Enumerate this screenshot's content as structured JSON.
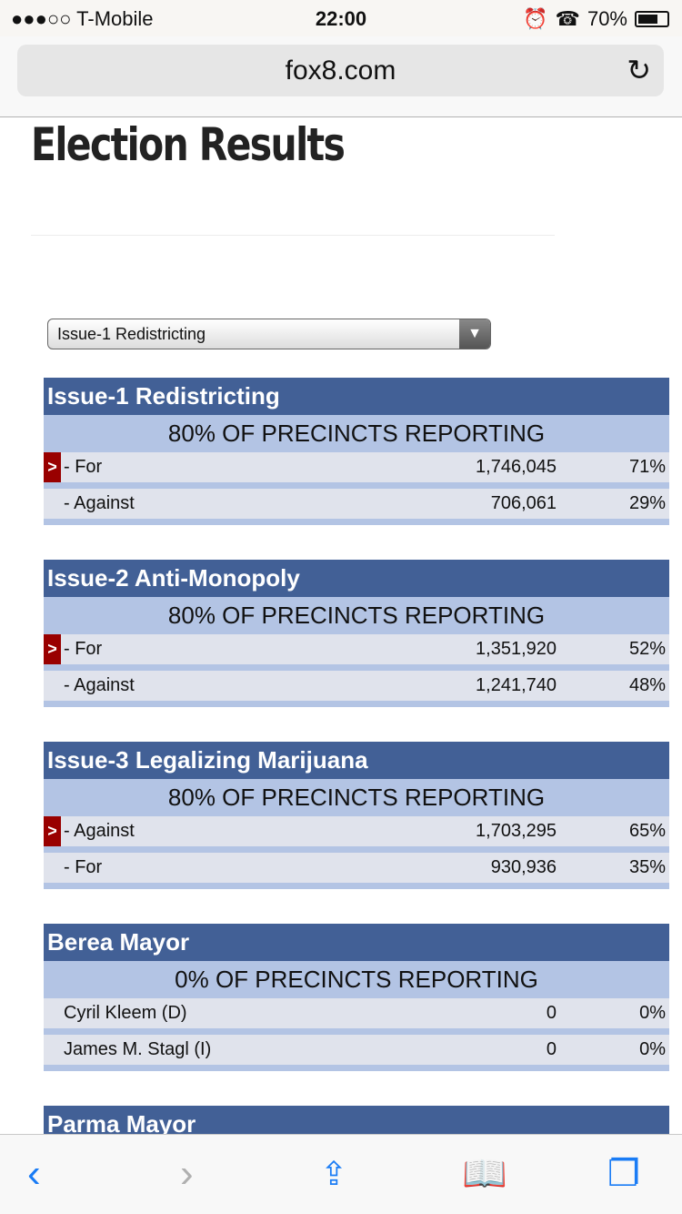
{
  "status": {
    "carrier": "●●●○○ T-Mobile",
    "time": "22:00",
    "battery": "70%",
    "battery_level": 0.7
  },
  "browser": {
    "url": "fox8.com"
  },
  "page": {
    "title": "Election Results",
    "select_value": "Issue-1 Redistricting"
  },
  "races": [
    {
      "title": "Issue-1 Redistricting",
      "reporting": "80% OF PRECINCTS REPORTING",
      "rows": [
        {
          "leader": true,
          "name": "- For",
          "votes": "1,746,045",
          "pct": "71%"
        },
        {
          "leader": false,
          "name": "- Against",
          "votes": "706,061",
          "pct": "29%"
        }
      ]
    },
    {
      "title": "Issue-2 Anti-Monopoly",
      "reporting": "80% OF PRECINCTS REPORTING",
      "rows": [
        {
          "leader": true,
          "name": "- For",
          "votes": "1,351,920",
          "pct": "52%"
        },
        {
          "leader": false,
          "name": "- Against",
          "votes": "1,241,740",
          "pct": "48%"
        }
      ]
    },
    {
      "title": "Issue-3 Legalizing Marijuana",
      "reporting": "80% OF PRECINCTS REPORTING",
      "rows": [
        {
          "leader": true,
          "name": "- Against",
          "votes": "1,703,295",
          "pct": "65%"
        },
        {
          "leader": false,
          "name": "- For",
          "votes": "930,936",
          "pct": "35%"
        }
      ]
    },
    {
      "title": "Berea Mayor",
      "reporting": "0% OF PRECINCTS REPORTING",
      "rows": [
        {
          "leader": false,
          "name": "Cyril Kleem (D)",
          "votes": "0",
          "pct": "0%"
        },
        {
          "leader": false,
          "name": "James M. Stagl (I)",
          "votes": "0",
          "pct": "0%"
        }
      ]
    },
    {
      "title": "Parma Mayor",
      "reporting": "",
      "rows": []
    }
  ],
  "leader_marker": ">"
}
